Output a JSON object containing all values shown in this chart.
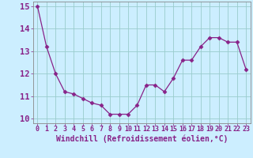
{
  "x": [
    0,
    1,
    2,
    3,
    4,
    5,
    6,
    7,
    8,
    9,
    10,
    11,
    12,
    13,
    14,
    15,
    16,
    17,
    18,
    19,
    20,
    21,
    22,
    23
  ],
  "y": [
    15.0,
    13.2,
    12.0,
    11.2,
    11.1,
    10.9,
    10.7,
    10.6,
    10.2,
    10.2,
    10.2,
    10.6,
    11.5,
    11.5,
    11.2,
    11.8,
    12.6,
    12.6,
    13.2,
    13.6,
    13.6,
    13.4,
    13.4,
    12.2
  ],
  "xlim": [
    -0.5,
    23.5
  ],
  "ylim": [
    9.8,
    15.2
  ],
  "yticks": [
    10,
    11,
    12,
    13,
    14,
    15
  ],
  "xticks": [
    0,
    1,
    2,
    3,
    4,
    5,
    6,
    7,
    8,
    9,
    10,
    11,
    12,
    13,
    14,
    15,
    16,
    17,
    18,
    19,
    20,
    21,
    22,
    23
  ],
  "xlabel": "Windchill (Refroidissement éolien,°C)",
  "line_color": "#882288",
  "marker": "D",
  "marker_size": 2.5,
  "bg_color": "#cceeff",
  "grid_color": "#99cccc",
  "label_color": "#882288",
  "tick_color": "#882288",
  "font_size_xlabel": 7.0,
  "font_size_yticks": 7.5,
  "font_size_xticks": 6.0,
  "spine_color": "#888888"
}
